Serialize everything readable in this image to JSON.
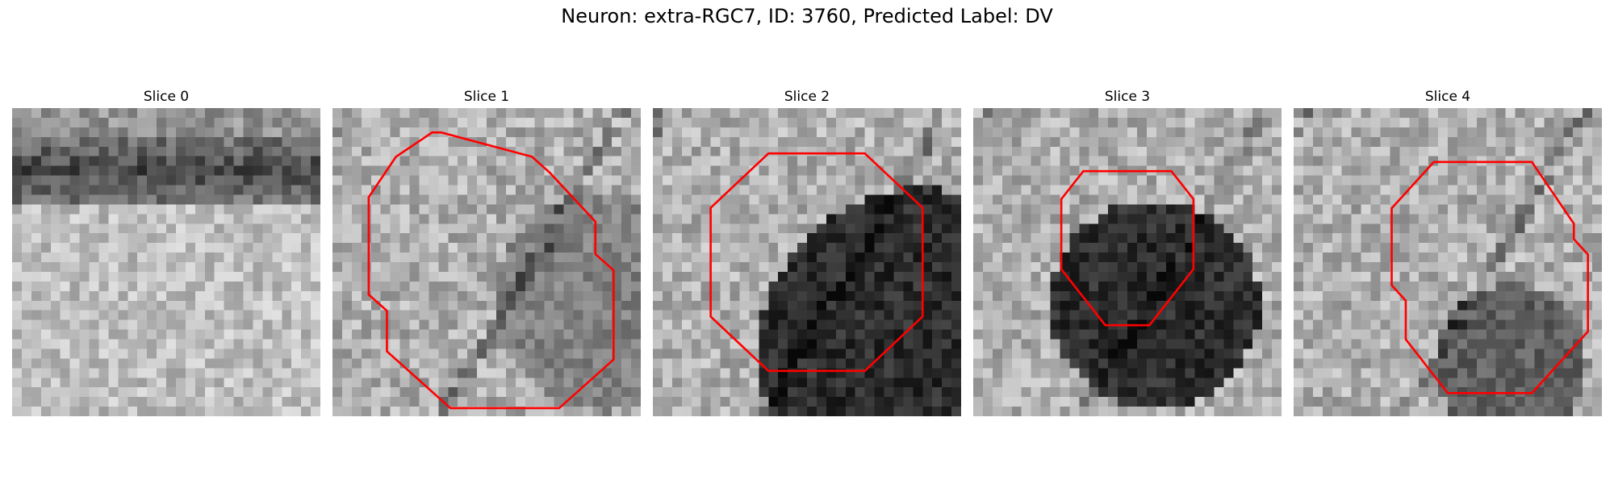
{
  "figure": {
    "title": "Neuron: extra-RGC7, ID: 3760, Predicted Label: DV"
  },
  "panels": [
    {
      "label": "Slice 0",
      "mode": "band",
      "outline": false
    },
    {
      "label": "Slice 1",
      "mode": "faint",
      "outline": true
    },
    {
      "label": "Slice 2",
      "mode": "dark",
      "outline": true
    },
    {
      "label": "Slice 3",
      "mode": "dark",
      "outline": true
    },
    {
      "label": "Slice 4",
      "mode": "medium",
      "outline": true
    }
  ],
  "colors": {
    "outline": "#ff0000"
  }
}
